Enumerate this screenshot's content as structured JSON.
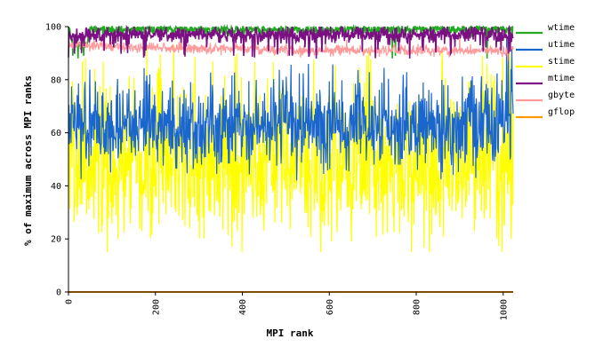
{
  "chart_data": {
    "type": "line",
    "title": "",
    "xlabel": "MPI rank",
    "ylabel": "% of maximum across MPI ranks",
    "xlim": [
      0,
      1023
    ],
    "ylim": [
      0,
      100
    ],
    "x_ticks": [
      0,
      200,
      400,
      600,
      800,
      1000
    ],
    "y_ticks": [
      0,
      20,
      40,
      60,
      80,
      100
    ],
    "x_tick_labels": [
      "0",
      "200",
      "400",
      "600",
      "800",
      "1000"
    ],
    "y_tick_labels": [
      "0",
      "20",
      "40",
      "60",
      "80",
      "100"
    ],
    "grid": false,
    "legend_position": "right",
    "n_points": 1024,
    "series": [
      {
        "name": "wtime",
        "color": "#22aa22",
        "base": 99.0,
        "spread": 0.9,
        "clip": [
          86,
          100
        ],
        "profile": [
          [
            0,
            100
          ],
          [
            10,
            93
          ],
          [
            40,
            93
          ],
          [
            50,
            99
          ],
          [
            1023,
            99
          ]
        ],
        "dips": [
          [
            10,
            89
          ],
          [
            22,
            88
          ],
          [
            35,
            89
          ],
          [
            745,
            88
          ],
          [
            752,
            89
          ],
          [
            963,
            88
          ]
        ]
      },
      {
        "name": "utime",
        "color": "#1a66cc",
        "base": 62.0,
        "spread": 8.0,
        "clip": [
          42,
          100
        ],
        "dips": [
          [
            1008,
            97
          ],
          [
            1012,
            90
          ],
          [
            1018,
            84
          ],
          [
            1020,
            92
          ]
        ]
      },
      {
        "name": "stime",
        "color": "#ffff00",
        "base": 47.0,
        "spread": 13.0,
        "clip": [
          15,
          100
        ],
        "dips": [
          [
            180,
            92
          ],
          [
            242,
            93
          ],
          [
            690,
            92
          ],
          [
            860,
            91
          ],
          [
            1016,
            90
          ]
        ]
      },
      {
        "name": "mtime",
        "color": "#7a1082",
        "base": 97.0,
        "spread": 1.5,
        "clip": [
          86,
          100
        ],
        "dips": [
          [
            30,
            90
          ],
          [
            136,
            90
          ],
          [
            178,
            91
          ],
          [
            380,
            89
          ],
          [
            508,
            89
          ],
          [
            570,
            88
          ],
          [
            785,
            88
          ],
          [
            880,
            90
          ],
          [
            995,
            91
          ]
        ]
      },
      {
        "name": "gbyte",
        "color": "#ff9999",
        "base": 92.0,
        "spread": 1.0,
        "clip": [
          84,
          100
        ],
        "profile": [
          [
            0,
            93
          ],
          [
            80,
            93
          ],
          [
            200,
            92
          ],
          [
            420,
            91.5
          ],
          [
            520,
            91
          ],
          [
            700,
            91
          ],
          [
            1023,
            91
          ]
        ],
        "dips": [
          [
            260,
            97
          ],
          [
            430,
            96
          ],
          [
            640,
            95
          ],
          [
            900,
            96
          ],
          [
            1010,
            87
          ]
        ]
      },
      {
        "name": "gflop",
        "color": "#ff9900",
        "base": 0,
        "spread": 0,
        "clip": [
          0,
          0
        ],
        "dips": []
      }
    ]
  }
}
